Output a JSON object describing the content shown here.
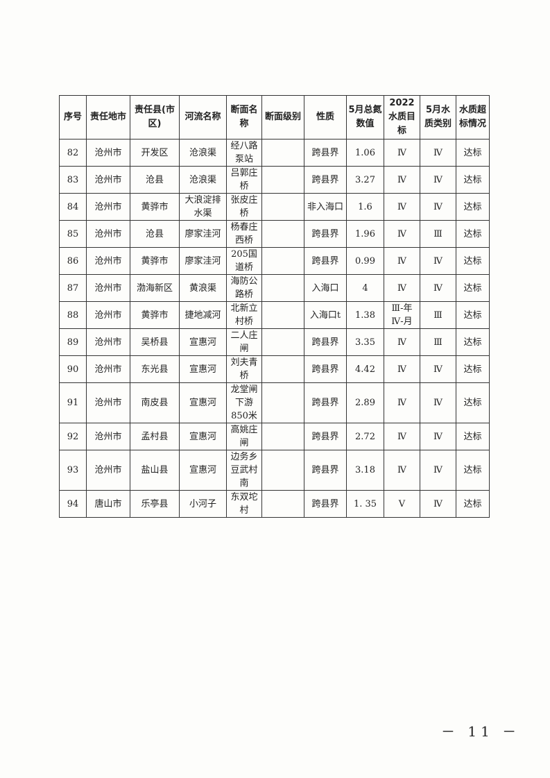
{
  "table": {
    "headers": [
      "序号",
      "责任地市",
      "责任县(市区)",
      "河流名称",
      "断面名称",
      "断面级别",
      "性质",
      "5月总氮数值",
      "2022水质目标",
      "5月水质类别",
      "水质超标情况"
    ],
    "rows": [
      [
        "82",
        "沧州市",
        "开发区",
        "沧浪渠",
        "经八路泵站",
        "",
        "跨县界",
        "1.06",
        "Ⅳ",
        "Ⅳ",
        "达标"
      ],
      [
        "83",
        "沧州市",
        "沧县",
        "沧浪渠",
        "吕郭庄桥",
        "",
        "跨县界",
        "3.27",
        "Ⅳ",
        "Ⅳ",
        "达标"
      ],
      [
        "84",
        "沧州市",
        "黄骅市",
        "大浪淀排水渠",
        "张皮庄桥",
        "",
        "非入海口",
        "1.6",
        "Ⅳ",
        "Ⅳ",
        "达标"
      ],
      [
        "85",
        "沧州市",
        "沧县",
        "廖家洼河",
        "杨春庄西桥",
        "",
        "跨县界",
        "1.96",
        "Ⅳ",
        "Ⅲ",
        "达标"
      ],
      [
        "86",
        "沧州市",
        "黄骅市",
        "廖家洼河",
        "205国道桥",
        "",
        "跨县界",
        "0.99",
        "Ⅳ",
        "Ⅳ",
        "达标"
      ],
      [
        "87",
        "沧州市",
        "渤海新区",
        "黄浪渠",
        "海防公路桥",
        "",
        "入海口",
        "4",
        "Ⅳ",
        "Ⅳ",
        "达标"
      ],
      [
        "88",
        "沧州市",
        "黄骅市",
        "捷地减河",
        "北新立村桥",
        "",
        "入海口t",
        "1.38",
        "Ⅲ-年 Ⅳ-月",
        "Ⅲ",
        "达标"
      ],
      [
        "89",
        "沧州市",
        "吴桥县",
        "宣惠河",
        "二人庄闸",
        "",
        "跨县界",
        "3.35",
        "Ⅳ",
        "Ⅲ",
        "达标"
      ],
      [
        "90",
        "沧州市",
        "东光县",
        "宣惠河",
        "刘夫青桥",
        "",
        "跨县界",
        "4.42",
        "Ⅳ",
        "Ⅳ",
        "达标"
      ],
      [
        "91",
        "沧州市",
        "南皮县",
        "宣惠河",
        "龙堂闸下游850米",
        "",
        "跨县界",
        "2.89",
        "Ⅳ",
        "Ⅳ",
        "达标"
      ],
      [
        "92",
        "沧州市",
        "孟村县",
        "宣惠河",
        "高姚庄闸",
        "",
        "跨县界",
        "2.72",
        "Ⅳ",
        "Ⅳ",
        "达标"
      ],
      [
        "93",
        "沧州市",
        "盐山县",
        "宣惠河",
        "边务乡豆武村南",
        "",
        "跨县界",
        "3.18",
        "Ⅳ",
        "Ⅳ",
        "达标"
      ],
      [
        "94",
        "唐山市",
        "乐亭县",
        "小河子",
        "东双坨村",
        "",
        "跨县界",
        "1. 35",
        "Ⅴ",
        "Ⅳ",
        "达标"
      ]
    ]
  },
  "page_number": "－ 11 －"
}
